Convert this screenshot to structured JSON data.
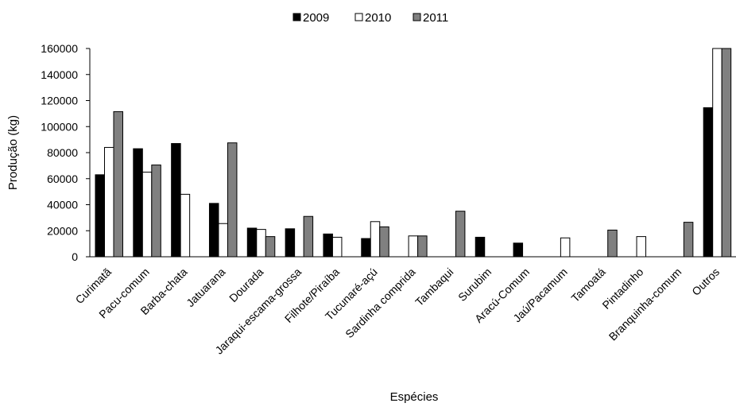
{
  "chart_data": {
    "type": "bar",
    "xlabel": "Espécies",
    "ylabel": "Produção (kg)",
    "ylim": [
      0,
      160000
    ],
    "yticks": [
      0,
      20000,
      40000,
      60000,
      80000,
      100000,
      120000,
      140000,
      160000
    ],
    "ytick_labels": [
      "0",
      "20000",
      "40000",
      "60000",
      "80000",
      "100000",
      "120000",
      "140000",
      "160000"
    ],
    "grid": false,
    "legend_position": "top-center",
    "categories": [
      "Curimatã",
      "Pacu-comum",
      "Barba-chata",
      "Jatuarana",
      "Dourada",
      "Jaraqui-escama-grossa",
      "Filhote/Piraíba",
      "Tucunaré-açú",
      "Sardinha comprida",
      "Tambaqui",
      "Surubim",
      "Aracú-Comum",
      "Jaú/Pacamum",
      "Tamoatá",
      "Pintadinho",
      "Branquinha-comum",
      "Outros"
    ],
    "series": [
      {
        "name": "2009",
        "color": "#000000",
        "values": [
          63000,
          83000,
          87000,
          41000,
          22000,
          21500,
          17500,
          14000,
          0,
          0,
          15000,
          10500,
          0,
          0,
          0,
          0,
          114500
        ]
      },
      {
        "name": "2010",
        "color": "#ffffff",
        "values": [
          84000,
          65000,
          48000,
          25500,
          21000,
          0,
          15000,
          27000,
          16000,
          0,
          0,
          0,
          14500,
          0,
          15500,
          0,
          160000
        ]
      },
      {
        "name": "2011",
        "color": "#808080",
        "values": [
          111500,
          70500,
          0,
          87500,
          15500,
          31000,
          0,
          23000,
          16000,
          35000,
          0,
          0,
          0,
          20500,
          0,
          26500,
          160000
        ]
      }
    ]
  }
}
